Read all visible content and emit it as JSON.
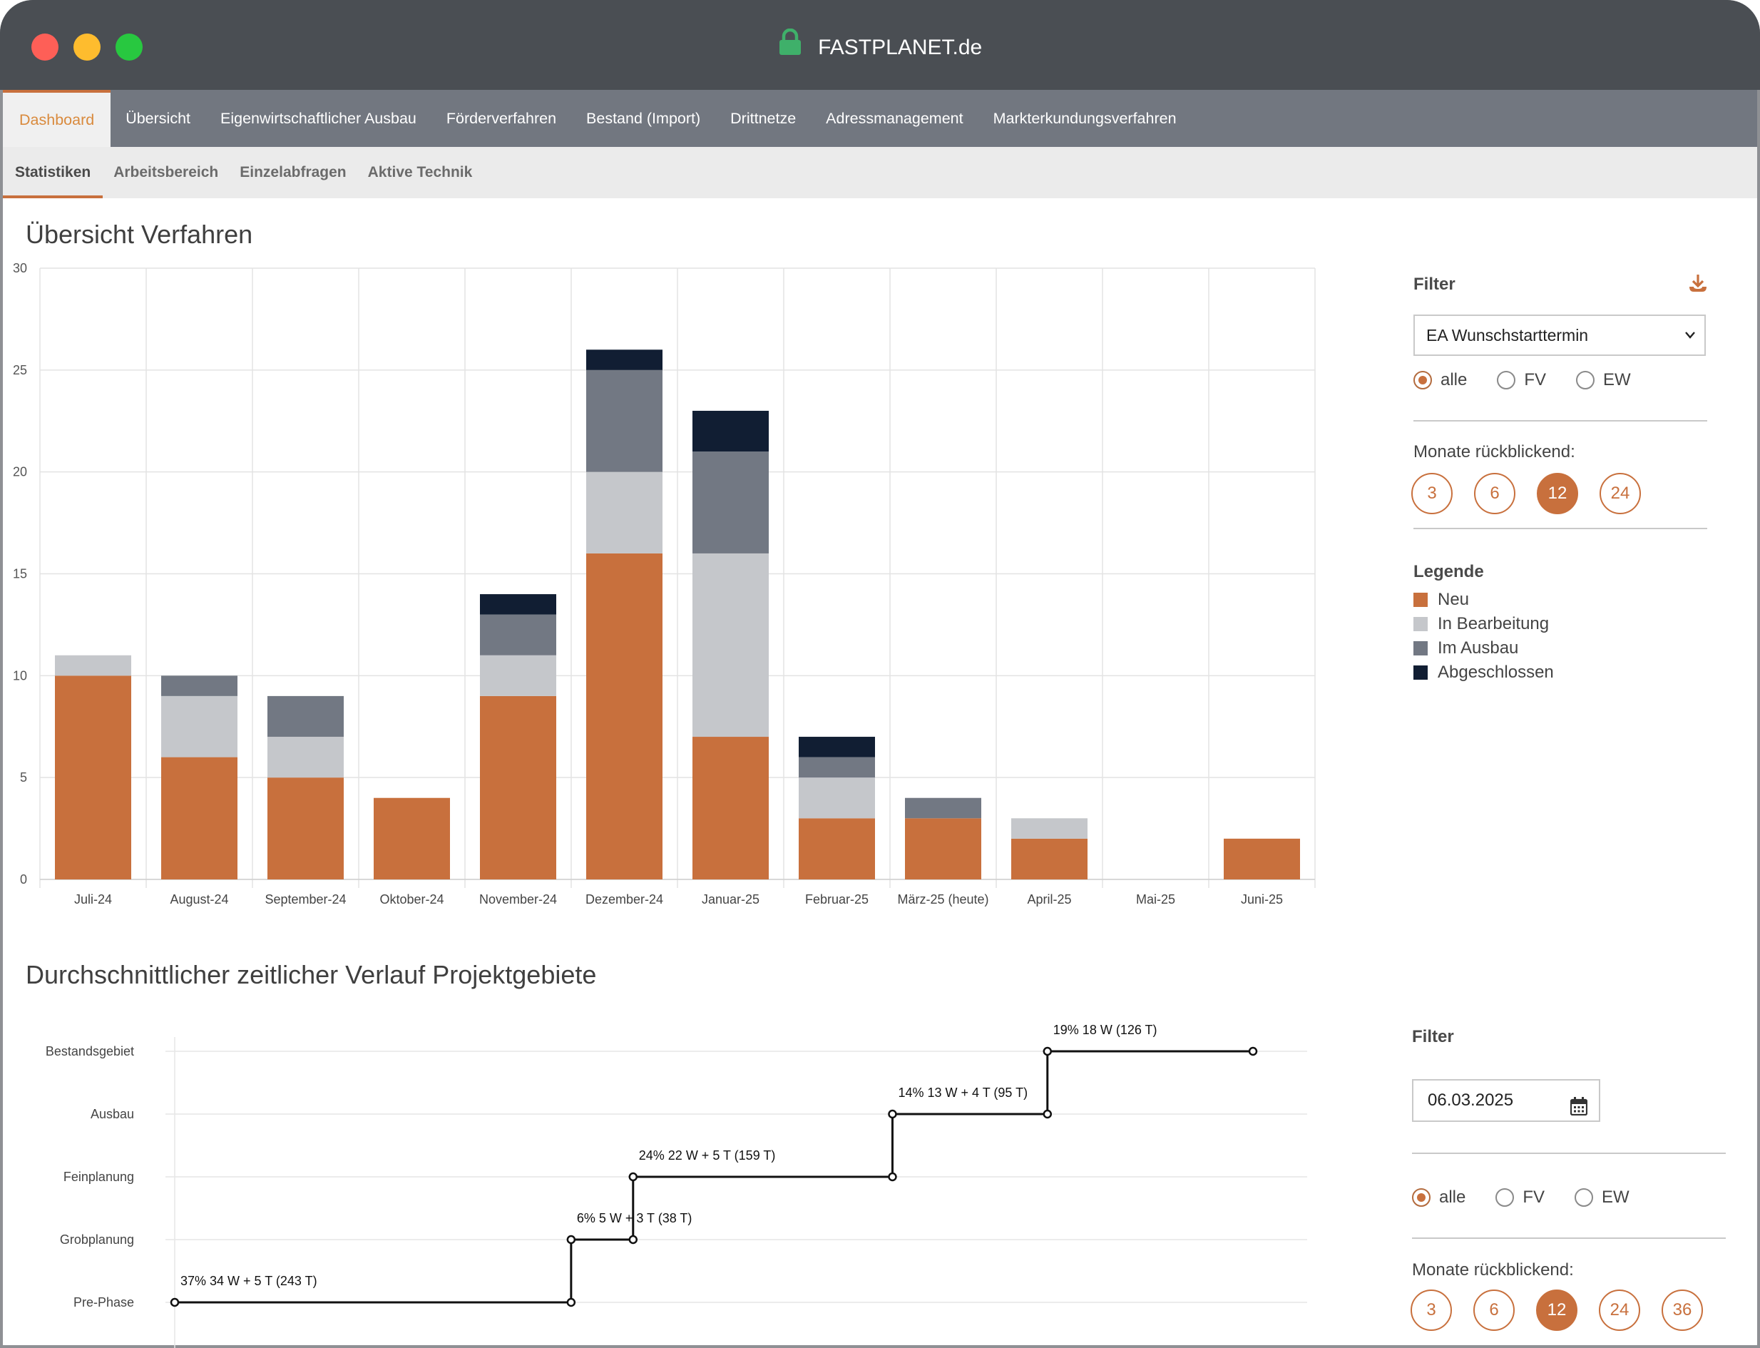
{
  "window": {
    "title": "FASTPLANET.de"
  },
  "nav": {
    "main": [
      "Dashboard",
      "Übersicht",
      "Eigenwirtschaftlicher Ausbau",
      "Förderverfahren",
      "Bestand (Import)",
      "Drittnetze",
      "Adressmanagement",
      "Markterkundungsverfahren"
    ],
    "sub": [
      "Statistiken",
      "Arbeitsbereich",
      "Einzelabfragen",
      "Aktive Technik"
    ]
  },
  "section1": {
    "title": "Übersicht Verfahren"
  },
  "section2": {
    "title": "Durchschnittlicher zeitlicher Verlauf Projektgebiete"
  },
  "filter1": {
    "heading": "Filter",
    "select_value": "EA Wunschstarttermin",
    "radios": [
      "alle",
      "FV",
      "EW"
    ],
    "months_label": "Monate rückblickend:",
    "months": [
      "3",
      "6",
      "12",
      "24"
    ],
    "legend_heading": "Legende"
  },
  "filter2": {
    "heading": "Filter",
    "date_value": "06.03.2025",
    "radios": [
      "alle",
      "FV",
      "EW"
    ],
    "months_label": "Monate rückblickend:",
    "months": [
      "3",
      "6",
      "12",
      "24",
      "36"
    ]
  },
  "colors": {
    "neu": "#c8703d",
    "bearbeitung": "#c5c7cb",
    "ausbau": "#727883",
    "abgeschlossen": "#111e33",
    "accent": "#c8703d"
  },
  "chart_data": [
    {
      "type": "bar",
      "stacked": true,
      "title": "Übersicht Verfahren",
      "categories": [
        "Juli-24",
        "August-24",
        "September-24",
        "Oktober-24",
        "November-24",
        "Dezember-24",
        "Januar-25",
        "Februar-25",
        "März-25 (heute)",
        "April-25",
        "Mai-25",
        "Juni-25"
      ],
      "series": [
        {
          "name": "Neu",
          "color": "#c8703d",
          "values": [
            10,
            6,
            5,
            4,
            9,
            16,
            7,
            3,
            3,
            2,
            0,
            2
          ]
        },
        {
          "name": "In Bearbeitung",
          "color": "#c5c7cb",
          "values": [
            1,
            3,
            2,
            0,
            2,
            4,
            9,
            2,
            0,
            1,
            0,
            0
          ]
        },
        {
          "name": "Im Ausbau",
          "color": "#727883",
          "values": [
            0,
            1,
            2,
            0,
            2,
            5,
            5,
            1,
            1,
            0,
            0,
            0
          ]
        },
        {
          "name": "Abgeschlossen",
          "color": "#111e33",
          "values": [
            0,
            0,
            0,
            0,
            1,
            1,
            2,
            1,
            0,
            0,
            0,
            0
          ]
        }
      ],
      "ylim": [
        0,
        30
      ],
      "yticks": [
        0,
        5,
        10,
        15,
        20,
        25,
        30
      ],
      "grid": true,
      "legend": "right"
    },
    {
      "type": "line",
      "step": true,
      "title": "Durchschnittlicher zeitlicher Verlauf Projektgebiete",
      "categories": [
        "Pre-Phase",
        "Grobplanung",
        "Feinplanung",
        "Ausbau",
        "Bestandsgebiet"
      ],
      "phases": [
        {
          "phase": "Pre-Phase",
          "days": 243,
          "label": "37% 34 W + 5 T (243 T)"
        },
        {
          "phase": "Grobplanung",
          "days": 38,
          "label": "6% 5 W + 3 T (38 T)"
        },
        {
          "phase": "Feinplanung",
          "days": 159,
          "label": "24% 22 W + 5 T (159 T)"
        },
        {
          "phase": "Ausbau",
          "days": 95,
          "label": "14% 13 W + 4 T (95 T)"
        },
        {
          "phase": "Bestandsgebiet",
          "days": 126,
          "label": "19% 18 W (126 T)"
        }
      ]
    }
  ]
}
